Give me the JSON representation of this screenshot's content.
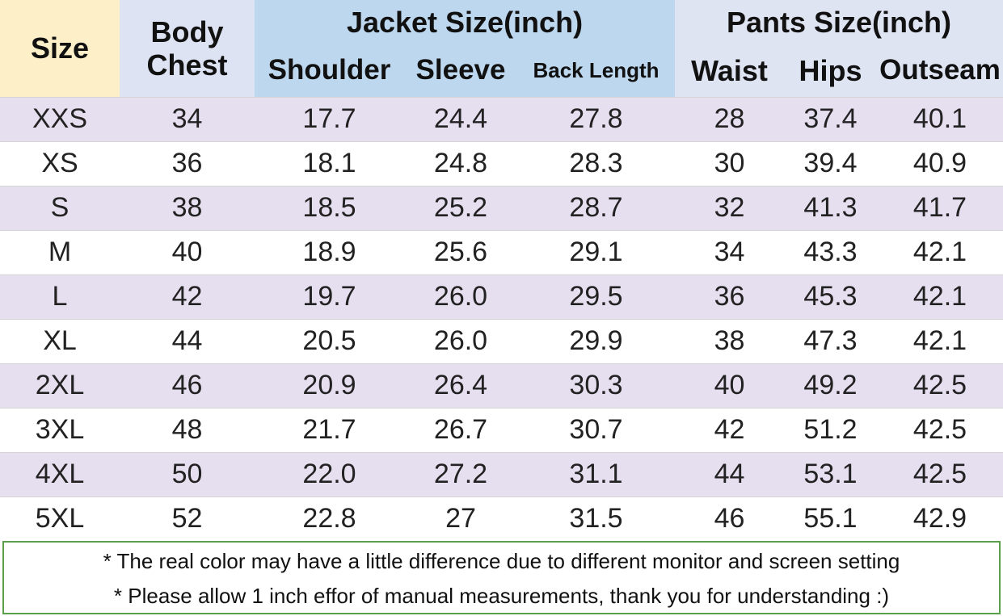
{
  "header": {
    "size": "Size",
    "body_chest": "Body Chest",
    "jacket": "Jacket Size(inch)",
    "pants": "Pants Size(inch)",
    "columns": [
      "Shoulder",
      "Sleeve",
      "Back Length",
      "Waist",
      "Hips",
      "Outseam"
    ]
  },
  "table": {
    "rows": [
      [
        "XXS",
        "34",
        "17.7",
        "24.4",
        "27.8",
        "28",
        "37.4",
        "40.1"
      ],
      [
        "XS",
        "36",
        "18.1",
        "24.8",
        "28.3",
        "30",
        "39.4",
        "40.9"
      ],
      [
        "S",
        "38",
        "18.5",
        "25.2",
        "28.7",
        "32",
        "41.3",
        "41.7"
      ],
      [
        "M",
        "40",
        "18.9",
        "25.6",
        "29.1",
        "34",
        "43.3",
        "42.1"
      ],
      [
        "L",
        "42",
        "19.7",
        "26.0",
        "29.5",
        "36",
        "45.3",
        "42.1"
      ],
      [
        "XL",
        "44",
        "20.5",
        "26.0",
        "29.9",
        "38",
        "47.3",
        "42.1"
      ],
      [
        "2XL",
        "46",
        "20.9",
        "26.4",
        "30.3",
        "40",
        "49.2",
        "42.5"
      ],
      [
        "3XL",
        "48",
        "21.7",
        "26.7",
        "30.7",
        "42",
        "51.2",
        "42.5"
      ],
      [
        "4XL",
        "50",
        "22.0",
        "27.2",
        "31.1",
        "44",
        "53.1",
        "42.5"
      ],
      [
        "5XL",
        "52",
        "22.8",
        "27",
        "31.5",
        "46",
        "55.1",
        "42.9"
      ]
    ]
  },
  "notes": [
    "* The real color may have a little difference due to different monitor and screen setting",
    "* Please allow 1 inch effor of manual measurements, thank you for understanding  :)"
  ]
}
